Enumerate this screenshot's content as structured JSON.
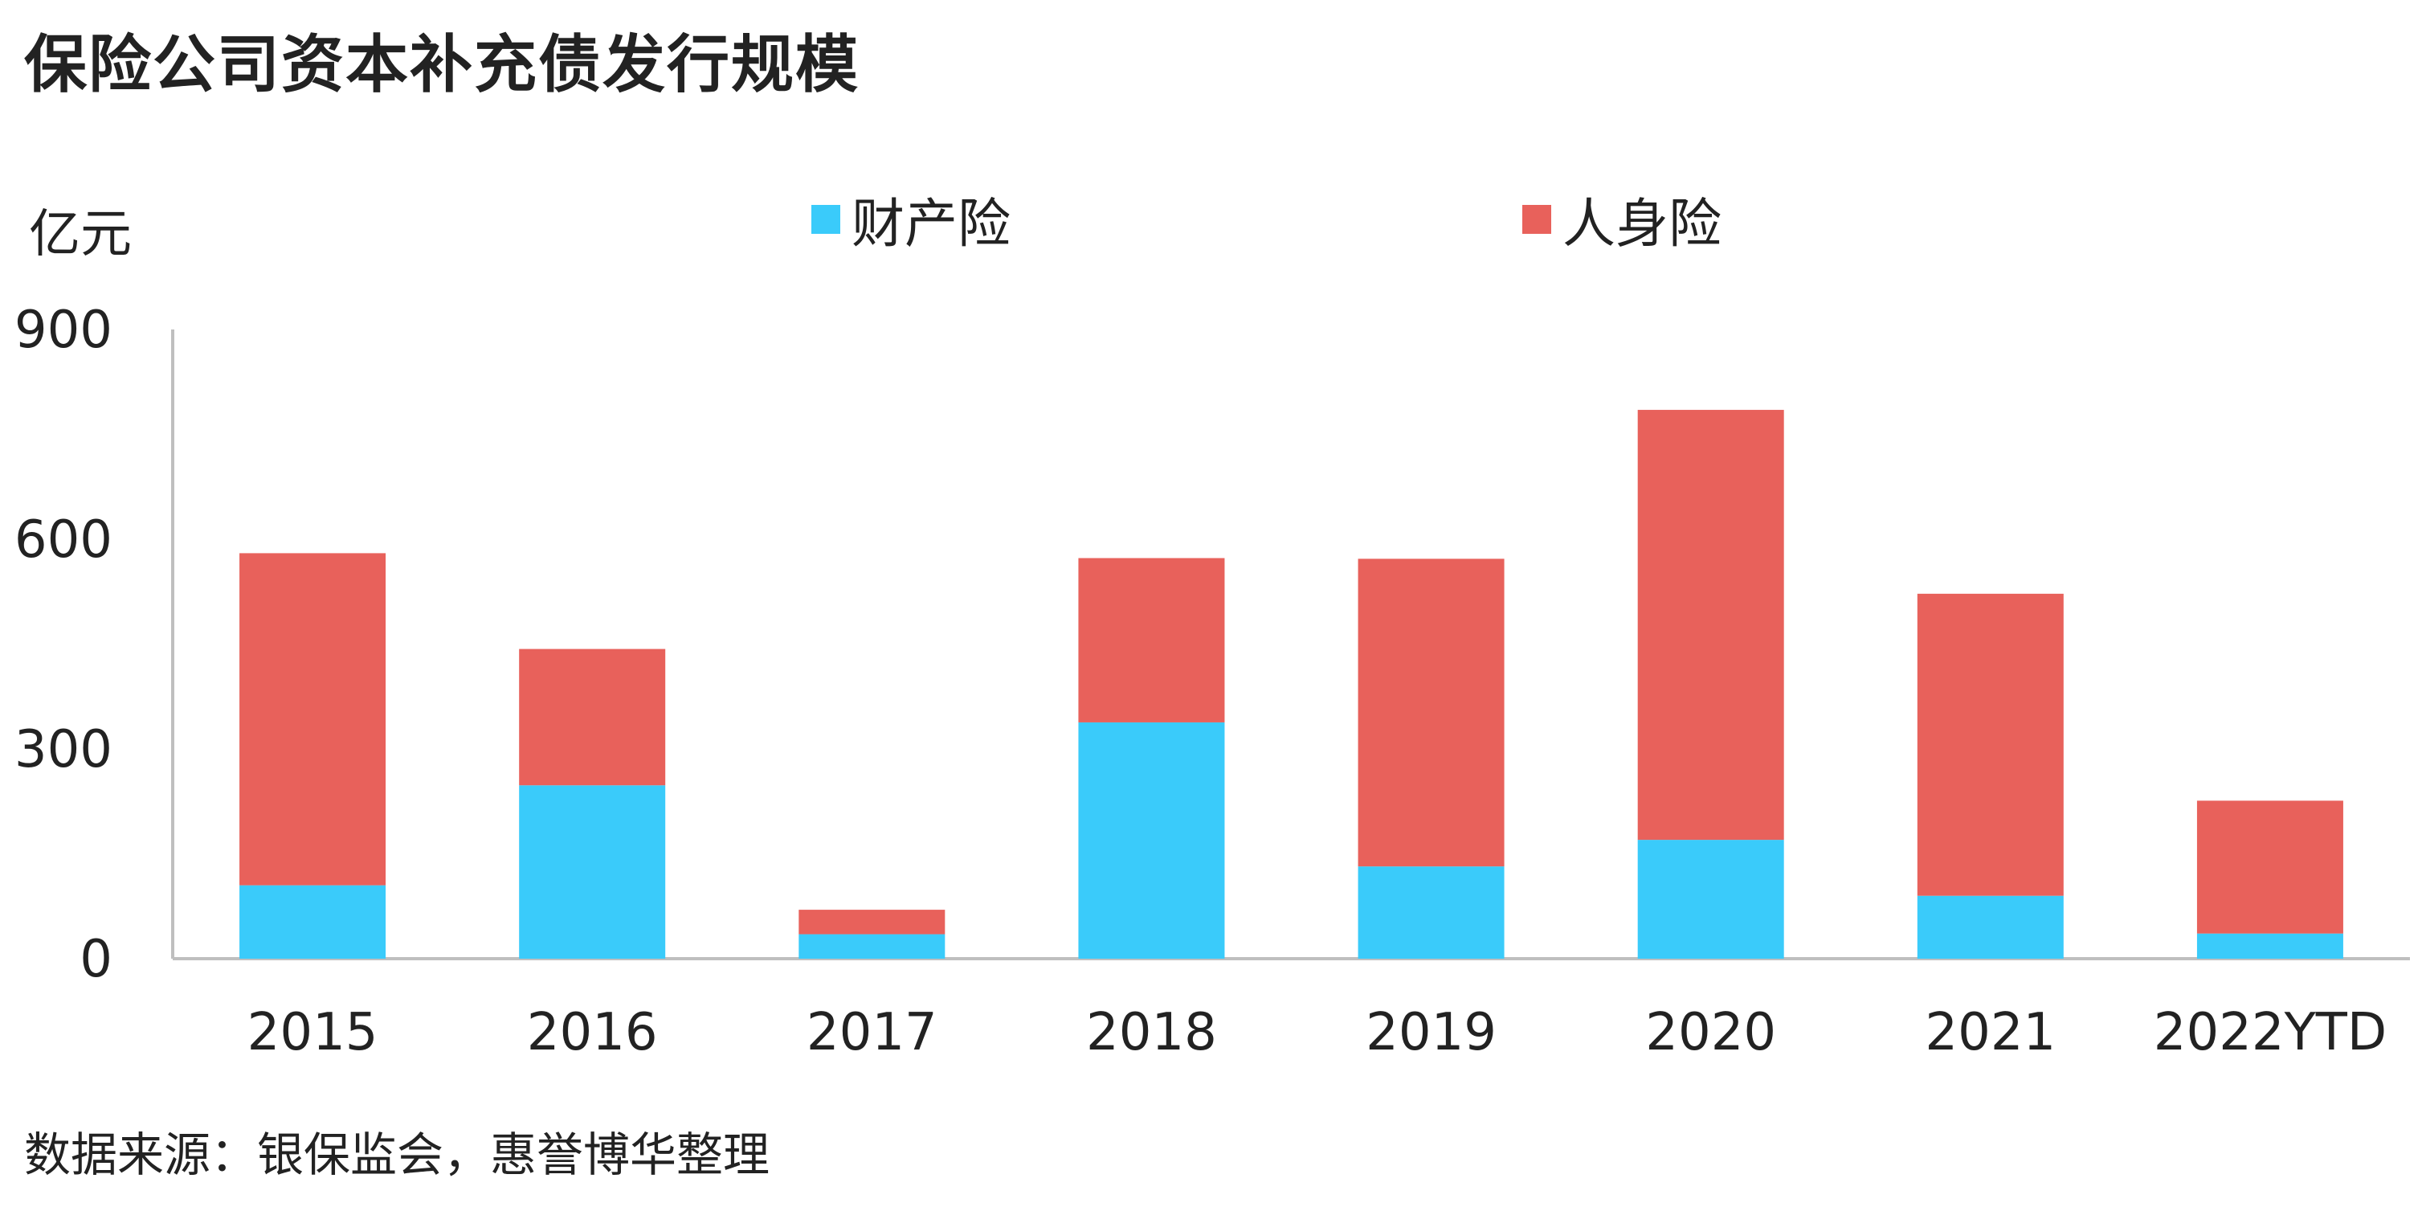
{
  "title": "保险公司资本补充债发行规模",
  "unit_label": "亿元",
  "source": "数据来源：银保监会，惠誉博华整理",
  "colors": {
    "series_0": "#3ACBFA",
    "series_1": "#E8615B",
    "axis": "#BFBFBF"
  },
  "chart_data": {
    "type": "bar",
    "stacked": true,
    "categories": [
      "2015",
      "2016",
      "2017",
      "2018",
      "2019",
      "2020",
      "2021",
      "2022YTD"
    ],
    "series": [
      {
        "name": "财产险",
        "values": [
          105,
          248,
          35,
          338,
          132,
          170,
          90,
          36
        ]
      },
      {
        "name": "人身险",
        "values": [
          475,
          195,
          35,
          235,
          440,
          615,
          432,
          190
        ]
      }
    ],
    "ylabel": "亿元",
    "ylim": [
      0,
      900
    ],
    "yticks": [
      0,
      300,
      600,
      900
    ],
    "grid": false,
    "legend": "top"
  }
}
